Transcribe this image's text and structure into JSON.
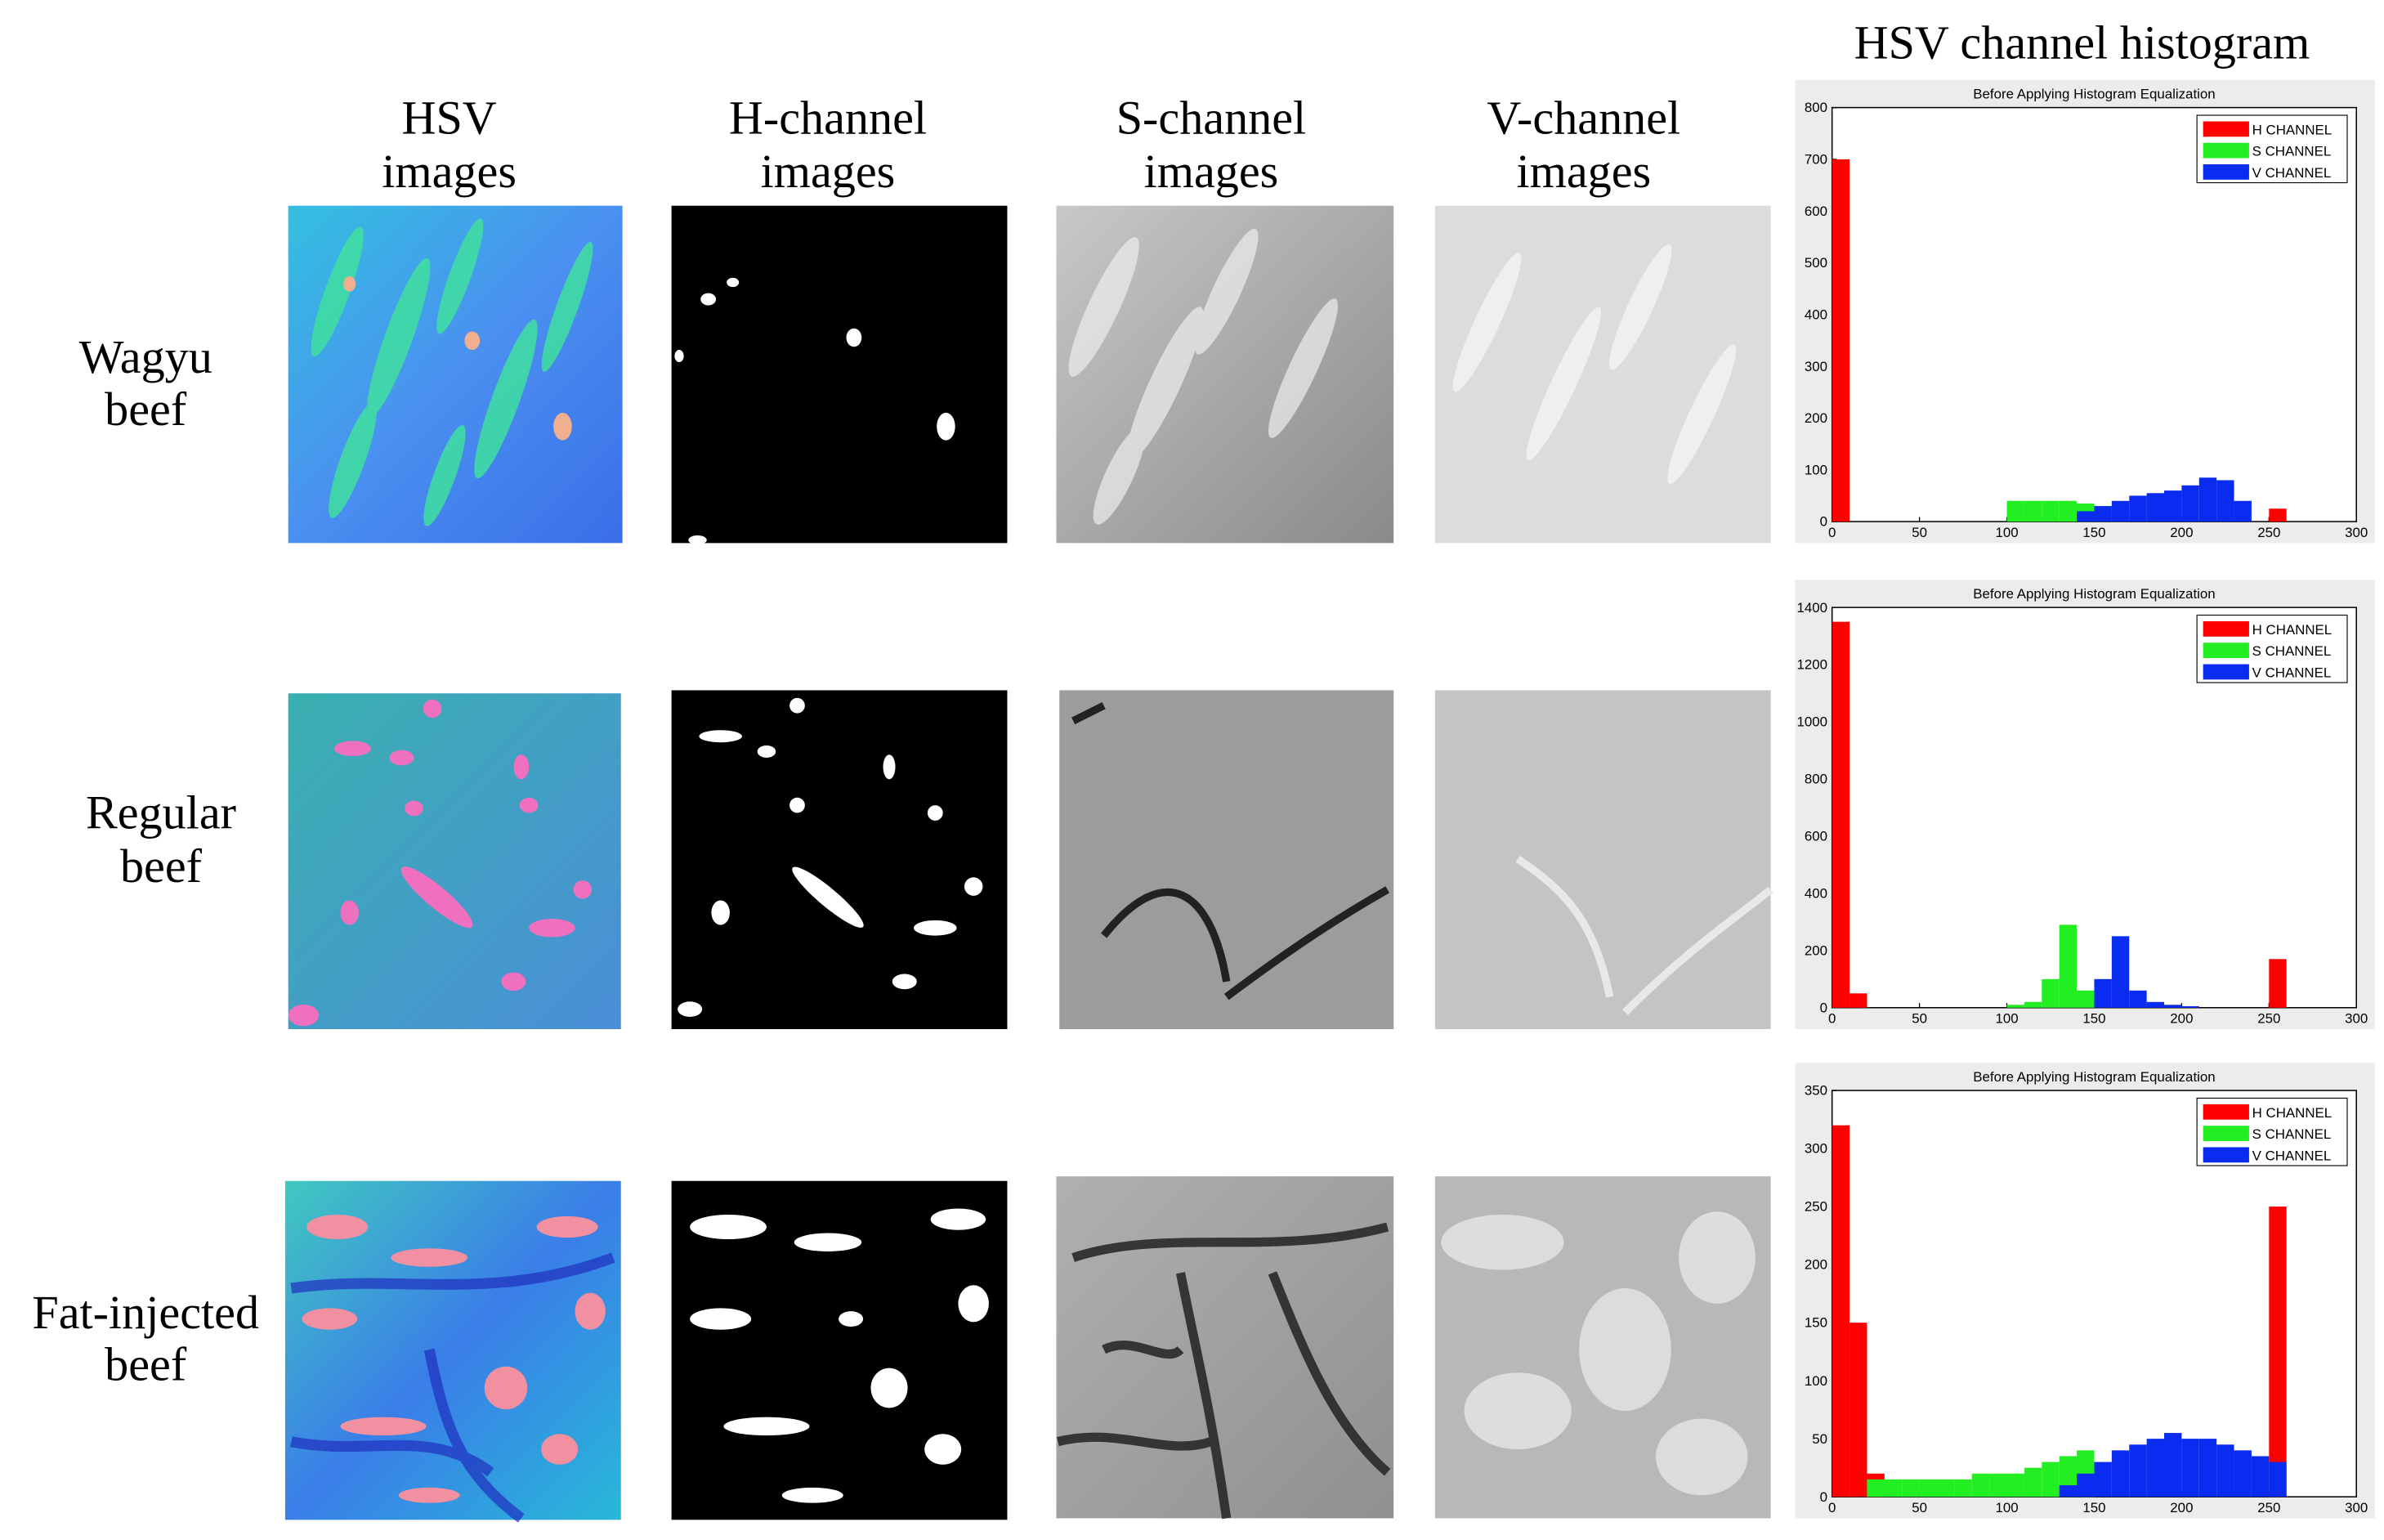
{
  "histogram_heading": "HSV channel histogram",
  "columns": [
    [
      "HSV",
      "images"
    ],
    [
      "H-channel",
      "images"
    ],
    [
      "S-channel",
      "images"
    ],
    [
      "V-channel",
      "images"
    ]
  ],
  "rows": [
    [
      "Wagyu",
      "beef"
    ],
    [
      "Regular",
      "beef"
    ],
    [
      "Fat-injected",
      "beef"
    ]
  ],
  "chart_data": [
    {
      "type": "histogram",
      "title": "Before Applying Histogram Equalization",
      "bins": [
        0,
        10,
        20,
        30,
        40,
        50,
        60,
        70,
        80,
        90,
        100,
        110,
        120,
        130,
        140,
        150,
        160,
        170,
        180,
        190,
        200,
        210,
        220,
        230,
        240,
        250,
        260
      ],
      "xlim": [
        0,
        300
      ],
      "xticks": [
        0,
        50,
        100,
        150,
        200,
        250,
        300
      ],
      "ylim": [
        0,
        800
      ],
      "yticks": [
        0,
        100,
        200,
        300,
        400,
        500,
        600,
        700,
        800
      ],
      "legend": "upper right",
      "series": [
        {
          "name": "H CHANNEL",
          "color": "#ff0000",
          "values": [
            700,
            0,
            0,
            0,
            0,
            0,
            0,
            0,
            0,
            0,
            0,
            0,
            0,
            0,
            0,
            0,
            0,
            0,
            0,
            0,
            0,
            0,
            0,
            0,
            0,
            25
          ]
        },
        {
          "name": "S CHANNEL",
          "color": "#22ee22",
          "values": [
            0,
            0,
            0,
            0,
            0,
            0,
            0,
            0,
            0,
            0,
            40,
            40,
            40,
            40,
            35,
            30,
            20,
            0,
            0,
            0,
            0,
            0,
            0,
            0,
            0,
            0
          ]
        },
        {
          "name": "V CHANNEL",
          "color": "#0a2cf0",
          "values": [
            0,
            0,
            0,
            0,
            0,
            0,
            0,
            0,
            0,
            0,
            0,
            0,
            0,
            0,
            20,
            30,
            40,
            50,
            55,
            60,
            70,
            85,
            80,
            40,
            0,
            0
          ]
        }
      ]
    },
    {
      "type": "histogram",
      "title": "Before Applying Histogram Equalization",
      "bins": [
        0,
        10,
        20,
        30,
        40,
        50,
        60,
        70,
        80,
        90,
        100,
        110,
        120,
        130,
        140,
        150,
        160,
        170,
        180,
        190,
        200,
        210,
        220,
        230,
        240,
        250,
        260
      ],
      "xlim": [
        0,
        300
      ],
      "xticks": [
        0,
        50,
        100,
        150,
        200,
        250,
        300
      ],
      "ylim": [
        0,
        1400
      ],
      "yticks": [
        0,
        200,
        400,
        600,
        800,
        1000,
        1200,
        1400
      ],
      "legend": "upper right",
      "series": [
        {
          "name": "H CHANNEL",
          "color": "#ff0000",
          "values": [
            1350,
            50,
            0,
            0,
            0,
            0,
            0,
            0,
            0,
            0,
            0,
            0,
            0,
            0,
            0,
            0,
            0,
            0,
            0,
            0,
            0,
            0,
            0,
            0,
            0,
            170
          ]
        },
        {
          "name": "S CHANNEL",
          "color": "#22ee22",
          "values": [
            0,
            0,
            0,
            0,
            0,
            0,
            0,
            0,
            0,
            0,
            10,
            20,
            100,
            290,
            60,
            0,
            0,
            0,
            0,
            0,
            0,
            0,
            0,
            0,
            0,
            0
          ]
        },
        {
          "name": "V CHANNEL",
          "color": "#0a2cf0",
          "values": [
            0,
            0,
            0,
            0,
            0,
            0,
            0,
            0,
            0,
            0,
            0,
            0,
            0,
            0,
            0,
            100,
            250,
            60,
            20,
            10,
            5,
            0,
            0,
            0,
            0,
            0
          ]
        }
      ]
    },
    {
      "type": "histogram",
      "title": "Before Applying Histogram Equalization",
      "bins": [
        0,
        10,
        20,
        30,
        40,
        50,
        60,
        70,
        80,
        90,
        100,
        110,
        120,
        130,
        140,
        150,
        160,
        170,
        180,
        190,
        200,
        210,
        220,
        230,
        240,
        250,
        260
      ],
      "xlim": [
        0,
        300
      ],
      "xticks": [
        0,
        50,
        100,
        150,
        200,
        250,
        300
      ],
      "ylim": [
        0,
        350
      ],
      "yticks": [
        0,
        50,
        100,
        150,
        200,
        250,
        300,
        350
      ],
      "legend": "upper right",
      "series": [
        {
          "name": "H CHANNEL",
          "color": "#ff0000",
          "values": [
            320,
            150,
            20,
            0,
            0,
            0,
            0,
            0,
            0,
            0,
            0,
            0,
            0,
            0,
            0,
            0,
            0,
            0,
            0,
            0,
            0,
            0,
            0,
            0,
            0,
            250
          ]
        },
        {
          "name": "S CHANNEL",
          "color": "#22ee22",
          "values": [
            0,
            0,
            15,
            15,
            15,
            15,
            15,
            15,
            20,
            20,
            20,
            25,
            30,
            35,
            40,
            0,
            0,
            0,
            0,
            0,
            0,
            0,
            0,
            0,
            0,
            0
          ]
        },
        {
          "name": "V CHANNEL",
          "color": "#0a2cf0",
          "values": [
            0,
            0,
            0,
            0,
            0,
            0,
            0,
            0,
            0,
            0,
            0,
            0,
            0,
            10,
            20,
            30,
            40,
            45,
            50,
            55,
            50,
            50,
            45,
            40,
            35,
            30
          ]
        }
      ]
    }
  ]
}
